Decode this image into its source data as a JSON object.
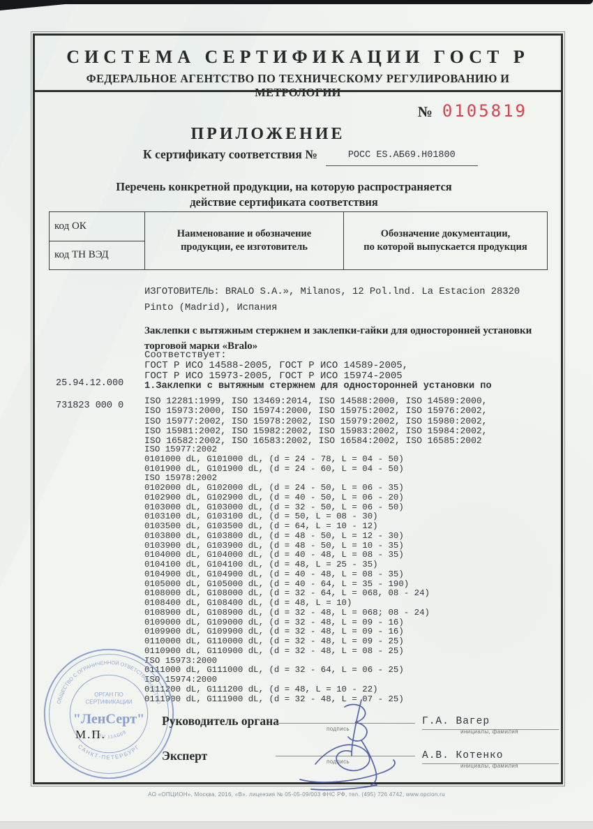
{
  "document": {
    "system_title": "СИСТЕМА СЕРТИФИКАЦИИ ГОСТ Р",
    "agency": "ФЕДЕРАЛЬНОЕ АГЕНТСТВО ПО ТЕХНИЧЕСКОМУ РЕГУЛИРОВАНИЮ И МЕТРОЛОГИИ",
    "blank_number_label": "№",
    "blank_number": "0105819",
    "appendix_title": "ПРИЛОЖЕНИЕ",
    "cert_ref_label": "К сертификату соответствия №",
    "cert_ref_number": "РОСС ES.АБ69.Н01800",
    "scope_line1": "Перечень конкретной продукции,  на которую распространяется",
    "scope_line2": "действие сертификата соответствия"
  },
  "table_header": {
    "col1_top": "код ОК",
    "col1_bottom": "код ТН ВЭД",
    "col2_line1": "Наименование и обозначение",
    "col2_line2": "продукции, ее изготовитель",
    "col3_line1": "Обозначение документации,",
    "col3_line2": "по которой выпускается продукция"
  },
  "codes": {
    "ok_code": "25.94.12.000",
    "tnved_code": "731823 000 0"
  },
  "body": {
    "manufacturer_line1": "ИЗГОТОВИТЕЛЬ: BRALO S.A.», Milanos, 12 Pol.lnd. La Estacion 28320",
    "manufacturer_line2": "Pinto (Madrid), Испания",
    "product_line1": "Заклепки с вытяжным стержнем и заклепки-гайки для односторонней установки",
    "product_line2": "торговой марки «Bralo»",
    "conformity": [
      "Соответствует:",
      "ГОСТ Р ИСО 14588-2005, ГОСТ Р ИСО 14589-2005,",
      "ГОСТ Р ИСО 15973-2005, ГОСТ Р ИСО 15974-2005"
    ],
    "item1_title": "1.Заклепки с вытяжным стержнем для односторонней установки по",
    "iso_standards": [
      "ISO 12281:1999, ISO 13469:2014, ISO 14588:2000, ISO 14589:2000,",
      "ISO 15973:2000, ISO 15974:2000, ISO 15975:2002, ISO 15976:2002,",
      "ISO 15977:2002, ISO 15978:2002, ISO 15979:2002, ISO 15980:2002,",
      "ISO 15981:2002, ISO 15982:2002, ISO 15983:2002, ISO 15984:2002,",
      "ISO 16582:2002, ISO 16583:2002, ISO 16584:2002, ISO 16585:2002"
    ],
    "spec_lines": [
      "ISO 15977:2002",
      "0101000 dL, G101000 dL, (d = 24 - 78, L = 04 - 50)",
      "0101900 dL, G101900 dL, (d = 24 - 60, L = 04 - 50)",
      "ISO 15978:2002",
      "0102000 dL, G102000 dL, (d = 24 - 50, L = 06 - 35)",
      "0102900 dL, G102900 dL, (d = 40 - 50, L = 06 - 20)",
      "0103000 dL, G103000 dL, (d = 32 - 50, L = 06 - 50)",
      "0103100 dL, G103100 dL, (d = 50, L = 08 - 30)",
      "0103500 dL, G103500 dL, (d = 64, L = 10 - 12)",
      "0103800 dL, G103800 dL, (d = 48 - 50, L = 12 - 30)",
      "0103900 dL, G103900 dL, (d = 48 - 50, L = 10 - 35)",
      "0104000 dL, G104000 dL, (d = 40 - 48, L = 08 - 35)",
      "0104100 dL, G104100 dL, (d = 48, L = 25 - 35)",
      "0104900 dL, G104900 dL, (d = 40 - 48, L = 08 - 35)",
      "0105000 dL, G105000 dL, (d = 40 - 64, L = 35 - 190)",
      "0108000 dL, G108000 dL, (d = 32 - 64, L = 068, 08 - 24)",
      "0108400 dL, G108400 dL, (d = 48, L = 10)",
      "0108900 dL, G108900 dL, (d = 32 - 48, L = 068; 08 - 24)",
      "0109000 dL, G109000 dL, (d = 32 - 48, L = 09 - 16)",
      "0109900 dL, G109900 dL, (d = 32 - 48, L = 09 - 16)",
      "0110000 dL, G110000 dL, (d = 32 - 48, L = 09 - 25)",
      "0110900 dL, G110900 dL, (d = 32 - 48, L = 08 - 25)",
      "ISO 15973:2000",
      "0111000 dL, G111000 dL, (d = 32 - 64, L = 06 - 25)",
      "ISO 15974:2000",
      "0111200 dL, G111200 dL, (d = 48, L = 10 - 22)",
      "0111900 dL, G111900 dL, (d = 32 - 48, L = 07 - 25)"
    ]
  },
  "signing": {
    "stamp_place_label": "М.П.",
    "head_role": "Руководитель органа",
    "head_name": "Г.А. Вагер",
    "expert_role": "Эксперт",
    "expert_name": "А.В. Котенко",
    "signature_caption": "подпись",
    "initials_caption": "инициалы, фамилия"
  },
  "stamp": {
    "ring_top": "ОБЩЕСТВО С ОГРАНИЧЕННОЙ ОТВЕТСТВЕННОСТЬЮ",
    "ring_bottom": "САНКТ-ПЕТЕРБУРГ",
    "inner_arc": "№ RU 11АБ69",
    "center_line1": "ОРГАН ПО",
    "center_line2": "СЕРТИФИКАЦИИ",
    "center_name": "\"ЛенСерт\""
  },
  "footer": {
    "imprint": "АО «ОПЦИОН», Москва, 2016, «В».  лицензия № 05-05-09/003 ФНС РФ, тел. (495) 726 4742, www.opcion.ru"
  },
  "colors": {
    "serial_red": "#d8424e",
    "stamp_blue": "#7b93cb",
    "ink_blue": "#3a4ba0",
    "paper": "#f2f4f0"
  }
}
